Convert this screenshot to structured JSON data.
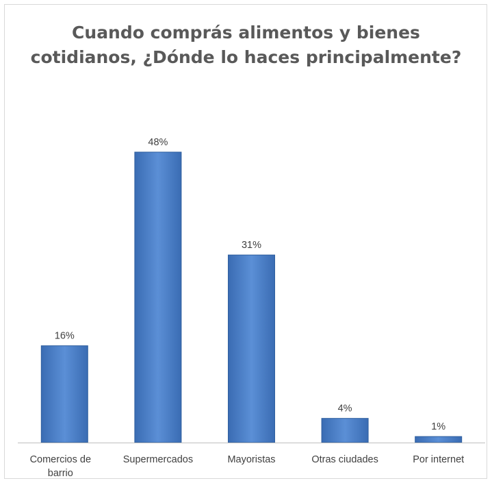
{
  "chart_data": {
    "type": "bar",
    "title_lines": [
      "Cuando comprás alimentos y bienes",
      "cotidianos, ¿Dónde lo haces principalmente?"
    ],
    "categories": [
      "Comercios de barrio",
      "Supermercados",
      "Mayoristas",
      "Otras ciudades",
      "Por internet"
    ],
    "category_label_lines": [
      [
        "Comercios de",
        "barrio"
      ],
      [
        "Supermercados"
      ],
      [
        "Mayoristas"
      ],
      [
        "Otras ciudades"
      ],
      [
        "Por internet"
      ]
    ],
    "values": [
      16,
      48,
      31,
      4,
      1
    ],
    "data_labels": [
      "16%",
      "48%",
      "31%",
      "4%",
      "1%"
    ],
    "ylim": [
      0,
      50
    ],
    "grid": false,
    "bar_color": "#4a7ebb"
  }
}
